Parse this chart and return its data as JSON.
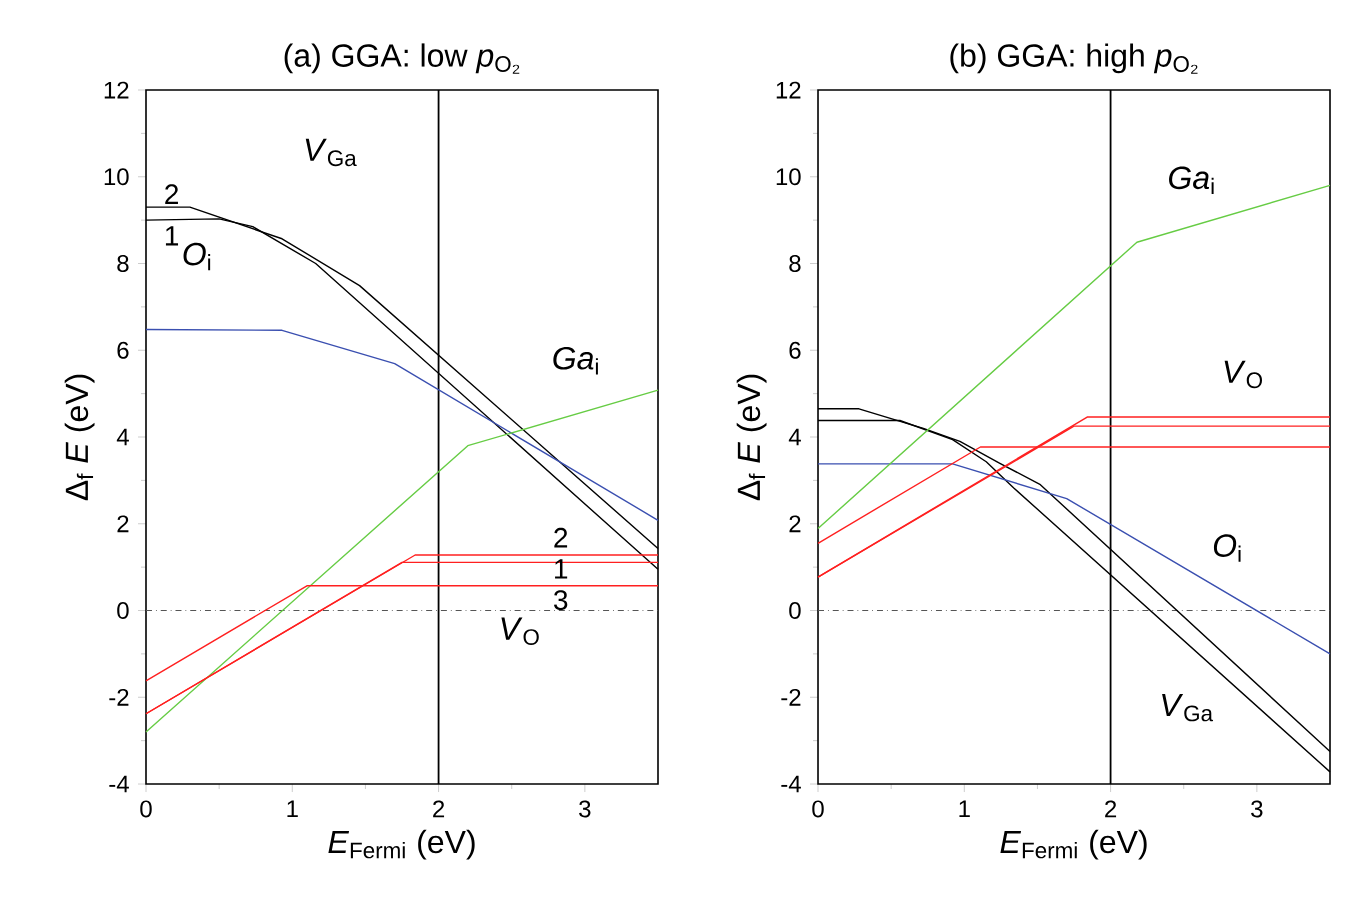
{
  "chart_data": [
    {
      "type": "line",
      "title": "(a)  GGA: low  *p*$_{O₂}$",
      "xlabel": "*E*$_{Fermi}$ (eV)",
      "ylabel": "Δ$_{f}$ *E* (eV)",
      "xlim": [
        0,
        3.5
      ],
      "ylim": [
        -4,
        12
      ],
      "xticks": [
        0,
        1,
        2,
        3
      ],
      "yticks": [
        -4,
        -2,
        0,
        2,
        4,
        6,
        8,
        10,
        12
      ],
      "series": [
        {
          "color": "#000000",
          "x": [
            0,
            0.3,
            0.93,
            1.46,
            3.5
          ],
          "values": [
            9.3,
            9.3,
            8.57,
            7.49,
            1.43
          ]
        },
        {
          "color": "#000000",
          "x": [
            0,
            0.5,
            0.73,
            1.16,
            3.5
          ],
          "values": [
            9.0,
            9.03,
            8.85,
            8.0,
            0.95
          ]
        },
        {
          "color": "#3a4fb0",
          "x": [
            0,
            0.93,
            1.7,
            3.5
          ],
          "values": [
            6.48,
            6.46,
            5.69,
            2.08
          ]
        },
        {
          "color": "#66cc44",
          "x": [
            0,
            2.2,
            3.5
          ],
          "values": [
            -2.8,
            3.8,
            5.08
          ]
        },
        {
          "color": "#ff2020",
          "x": [
            0,
            1.75,
            3.5
          ],
          "values": [
            -2.38,
            1.11,
            1.11
          ]
        },
        {
          "color": "#ff2020",
          "x": [
            0,
            1.84,
            3.5
          ],
          "values": [
            -2.38,
            1.28,
            1.28
          ]
        },
        {
          "color": "#ff2020",
          "x": [
            0,
            1.1,
            3.5
          ],
          "values": [
            -1.62,
            0.57,
            0.57
          ]
        }
      ],
      "ref_lines": [
        {
          "axis": "x",
          "value": 2,
          "color": "#000000",
          "line_style": "solid"
        },
        {
          "axis": "y",
          "value": 0,
          "color": "#555555",
          "line_style": "dashdot"
        }
      ],
      "annotations": [
        "*V*$_{Ga}$",
        "2",
        "1",
        "*O*$_{i}$",
        "*Ga*$_{i}$",
        "2",
        "1",
        "3",
        "*V*$_{O}$"
      ]
    },
    {
      "type": "line",
      "title": "(b)  GGA: high  *p*$_{O₂}$",
      "xlabel": "*E*$_{Fermi}$ (eV)",
      "ylabel": "Δ$_{f}$ *E* (eV)",
      "xlim": [
        0,
        3.5
      ],
      "ylim": [
        -4,
        12
      ],
      "xticks": [
        0,
        1,
        2,
        3
      ],
      "yticks": [
        -4,
        -2,
        0,
        2,
        4,
        6,
        8,
        10,
        12
      ],
      "series": [
        {
          "color": "#000000",
          "x": [
            0,
            0.28,
            0.72,
            0.97,
            1.24,
            1.52,
            3.5
          ],
          "values": [
            4.65,
            4.65,
            4.2,
            3.9,
            3.4,
            2.9,
            -3.25
          ]
        },
        {
          "color": "#000000",
          "x": [
            0,
            0.56,
            0.92,
            1.15,
            1.34,
            3.5
          ],
          "values": [
            4.38,
            4.38,
            3.94,
            3.43,
            2.82,
            -3.72
          ]
        },
        {
          "color": "#3a4fb0",
          "x": [
            0,
            0.92,
            1.7,
            3.5
          ],
          "values": [
            3.38,
            3.38,
            2.58,
            -1.0
          ]
        },
        {
          "color": "#66cc44",
          "x": [
            0,
            2.18,
            3.5
          ],
          "values": [
            1.89,
            8.49,
            9.8
          ]
        },
        {
          "color": "#ff2020",
          "x": [
            0,
            1.75,
            3.5
          ],
          "values": [
            0.77,
            4.25,
            4.25
          ]
        },
        {
          "color": "#ff2020",
          "x": [
            0,
            1.84,
            3.5
          ],
          "values": [
            0.77,
            4.46,
            4.46
          ]
        },
        {
          "color": "#ff2020",
          "x": [
            0,
            1.11,
            3.5
          ],
          "values": [
            1.55,
            3.77,
            3.77
          ]
        }
      ],
      "ref_lines": [
        {
          "axis": "x",
          "value": 2,
          "color": "#000000",
          "line_style": "solid"
        },
        {
          "axis": "y",
          "value": 0,
          "color": "#555555",
          "line_style": "dashdot"
        }
      ],
      "annotations": [
        "*Ga*$_{i}$",
        "*V*$_{O}$",
        "*O*$_{i}$",
        "*V*$_{Ga}$"
      ]
    }
  ]
}
